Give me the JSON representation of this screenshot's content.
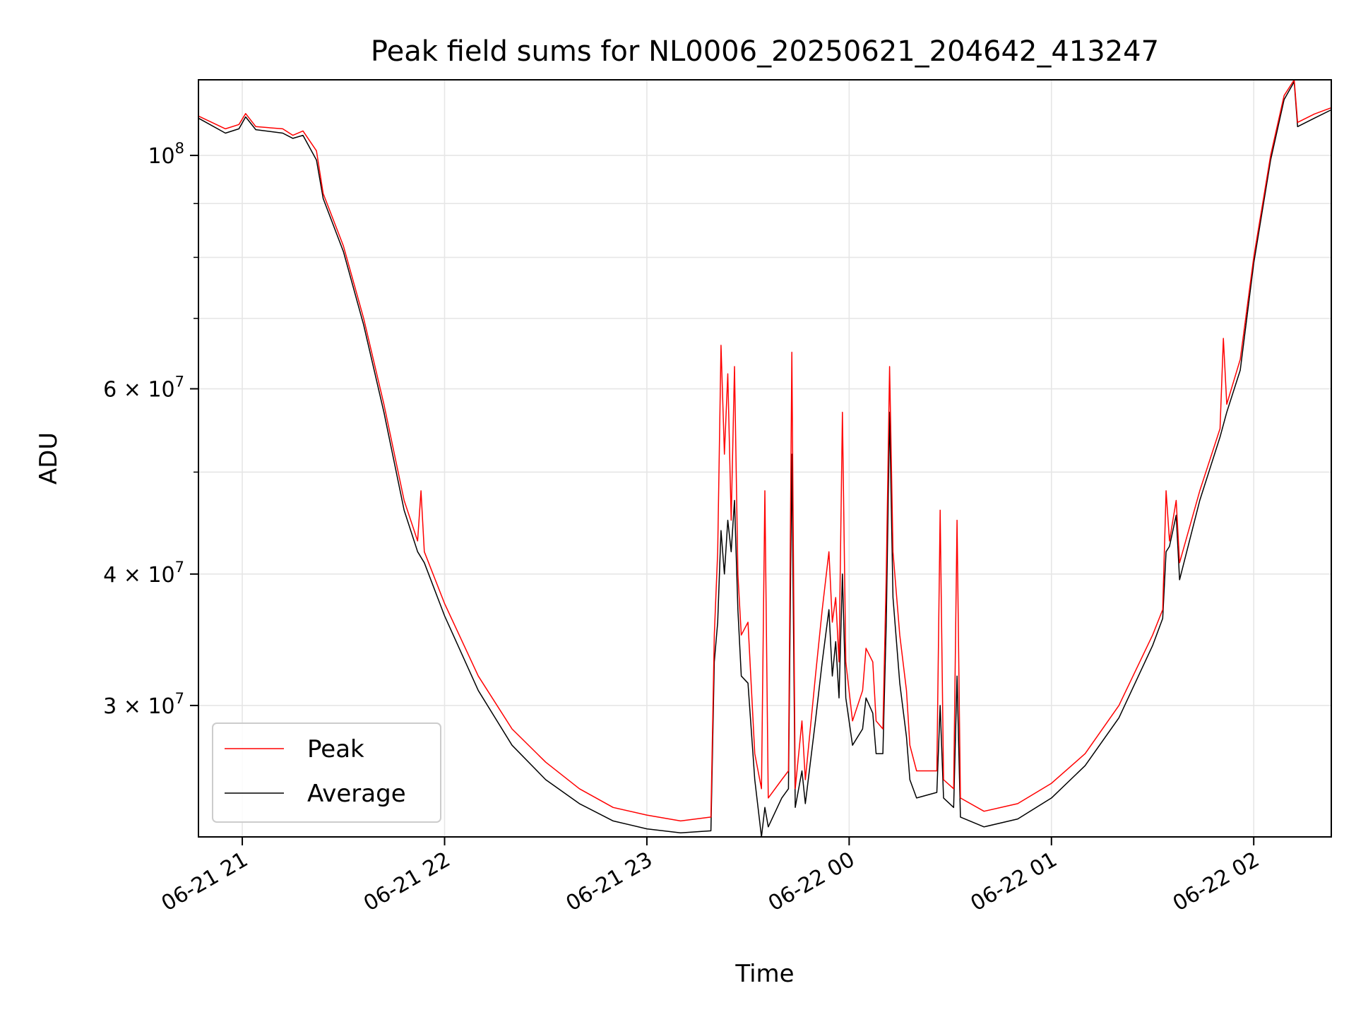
{
  "chart_data": {
    "type": "line",
    "title": "Peak field sums for NL0006_20250621_204642_413247",
    "xlabel": "Time",
    "ylabel": "ADU",
    "x_tick_labels": [
      "06-21 21",
      "06-21 22",
      "06-21 23",
      "06-22 00",
      "06-22 01",
      "06-22 02"
    ],
    "x_ticks": [
      "2025-06-21 21:00",
      "2025-06-21 22:00",
      "2025-06-21 23:00",
      "2025-06-22 00:00",
      "2025-06-22 01:00",
      "2025-06-22 02:00"
    ],
    "xlim": [
      "2025-06-21 20:47",
      "2025-06-22 02:23"
    ],
    "yscale": "log",
    "ylim": [
      22500000,
      118000000
    ],
    "y_major_ticks": [
      {
        "value": 100000000,
        "mantissa": "",
        "base": "10",
        "exp": "8"
      },
      {
        "value": 60000000,
        "mantissa": "6",
        "base": "10",
        "exp": "7"
      },
      {
        "value": 40000000,
        "mantissa": "4",
        "base": "10",
        "exp": "7"
      },
      {
        "value": 30000000,
        "mantissa": "3",
        "base": "10",
        "exp": "7"
      }
    ],
    "y_minor_ticks": [
      50000000,
      70000000,
      80000000,
      90000000
    ],
    "grid": true,
    "legend_position": "lower-left",
    "series": [
      {
        "name": "Peak",
        "color": "#ff0000",
        "points": [
          [
            "2025-06-21 20:47",
            109000000
          ],
          [
            "2025-06-21 20:55",
            106000000
          ],
          [
            "2025-06-21 20:59",
            107000000
          ],
          [
            "2025-06-21 21:01",
            109600000
          ],
          [
            "2025-06-21 21:04",
            106500000
          ],
          [
            "2025-06-21 21:12",
            106000000
          ],
          [
            "2025-06-21 21:15",
            104500000
          ],
          [
            "2025-06-21 21:18",
            105500000
          ],
          [
            "2025-06-21 21:22",
            101000000
          ],
          [
            "2025-06-21 21:24",
            92000000
          ],
          [
            "2025-06-21 21:30",
            82000000
          ],
          [
            "2025-06-21 21:36",
            70000000
          ],
          [
            "2025-06-21 21:42",
            58000000
          ],
          [
            "2025-06-21 21:48",
            47000000
          ],
          [
            "2025-06-21 21:52",
            43000000
          ],
          [
            "2025-06-21 21:53",
            48000000
          ],
          [
            "2025-06-21 21:54",
            42000000
          ],
          [
            "2025-06-21 22:00",
            37500000
          ],
          [
            "2025-06-21 22:10",
            32000000
          ],
          [
            "2025-06-21 22:20",
            28500000
          ],
          [
            "2025-06-21 22:30",
            26500000
          ],
          [
            "2025-06-21 22:40",
            25000000
          ],
          [
            "2025-06-21 22:50",
            24000000
          ],
          [
            "2025-06-21 23:00",
            23600000
          ],
          [
            "2025-06-21 23:10",
            23300000
          ],
          [
            "2025-06-21 23:19",
            23500000
          ],
          [
            "2025-06-21 23:20",
            35000000
          ],
          [
            "2025-06-21 23:21",
            42000000
          ],
          [
            "2025-06-21 23:22",
            66000000
          ],
          [
            "2025-06-21 23:23",
            52000000
          ],
          [
            "2025-06-21 23:24",
            62000000
          ],
          [
            "2025-06-21 23:25",
            45000000
          ],
          [
            "2025-06-21 23:26",
            63000000
          ],
          [
            "2025-06-21 23:27",
            40000000
          ],
          [
            "2025-06-21 23:28",
            35000000
          ],
          [
            "2025-06-21 23:30",
            36000000
          ],
          [
            "2025-06-21 23:32",
            27000000
          ],
          [
            "2025-06-21 23:34",
            25000000
          ],
          [
            "2025-06-21 23:35",
            48000000
          ],
          [
            "2025-06-21 23:36",
            24500000
          ],
          [
            "2025-06-21 23:40",
            25500000
          ],
          [
            "2025-06-21 23:42",
            26000000
          ],
          [
            "2025-06-21 23:43",
            65000000
          ],
          [
            "2025-06-21 23:44",
            25000000
          ],
          [
            "2025-06-21 23:46",
            29000000
          ],
          [
            "2025-06-21 23:47",
            25500000
          ],
          [
            "2025-06-21 23:50",
            32000000
          ],
          [
            "2025-06-21 23:52",
            37000000
          ],
          [
            "2025-06-21 23:54",
            42000000
          ],
          [
            "2025-06-21 23:55",
            36000000
          ],
          [
            "2025-06-21 23:56",
            38000000
          ],
          [
            "2025-06-21 23:57",
            33000000
          ],
          [
            "2025-06-21 23:58",
            57000000
          ],
          [
            "2025-06-21 23:59",
            33000000
          ],
          [
            "2025-06-22 00:01",
            29000000
          ],
          [
            "2025-06-22 00:04",
            31000000
          ],
          [
            "2025-06-22 00:05",
            34000000
          ],
          [
            "2025-06-22 00:07",
            33000000
          ],
          [
            "2025-06-22 00:08",
            29000000
          ],
          [
            "2025-06-22 00:10",
            28500000
          ],
          [
            "2025-06-22 00:11",
            40000000
          ],
          [
            "2025-06-22 00:12",
            63000000
          ],
          [
            "2025-06-22 00:13",
            42000000
          ],
          [
            "2025-06-22 00:15",
            35000000
          ],
          [
            "2025-06-22 00:17",
            31000000
          ],
          [
            "2025-06-22 00:18",
            27500000
          ],
          [
            "2025-06-22 00:20",
            26000000
          ],
          [
            "2025-06-22 00:26",
            26000000
          ],
          [
            "2025-06-22 00:27",
            46000000
          ],
          [
            "2025-06-22 00:28",
            25500000
          ],
          [
            "2025-06-22 00:31",
            25000000
          ],
          [
            "2025-06-22 00:32",
            45000000
          ],
          [
            "2025-06-22 00:33",
            24500000
          ],
          [
            "2025-06-22 00:40",
            23800000
          ],
          [
            "2025-06-22 00:50",
            24200000
          ],
          [
            "2025-06-22 01:00",
            25300000
          ],
          [
            "2025-06-22 01:10",
            27000000
          ],
          [
            "2025-06-22 01:20",
            30000000
          ],
          [
            "2025-06-22 01:30",
            35000000
          ],
          [
            "2025-06-22 01:33",
            37000000
          ],
          [
            "2025-06-22 01:34",
            48000000
          ],
          [
            "2025-06-22 01:35",
            43000000
          ],
          [
            "2025-06-22 01:37",
            47000000
          ],
          [
            "2025-06-22 01:38",
            41000000
          ],
          [
            "2025-06-22 01:44",
            48000000
          ],
          [
            "2025-06-22 01:50",
            55000000
          ],
          [
            "2025-06-22 01:51",
            67000000
          ],
          [
            "2025-06-22 01:52",
            58000000
          ],
          [
            "2025-06-22 01:56",
            64000000
          ],
          [
            "2025-06-22 02:00",
            80000000
          ],
          [
            "2025-06-22 02:05",
            100000000
          ],
          [
            "2025-06-22 02:09",
            114000000
          ],
          [
            "2025-06-22 02:12",
            118000000
          ],
          [
            "2025-06-22 02:13",
            107500000
          ],
          [
            "2025-06-22 02:18",
            109500000
          ],
          [
            "2025-06-22 02:23",
            111000000
          ]
        ]
      },
      {
        "name": "Average",
        "color": "#000000",
        "points": [
          [
            "2025-06-21 20:47",
            108500000
          ],
          [
            "2025-06-21 20:55",
            105000000
          ],
          [
            "2025-06-21 20:59",
            106000000
          ],
          [
            "2025-06-21 21:01",
            108800000
          ],
          [
            "2025-06-21 21:04",
            105800000
          ],
          [
            "2025-06-21 21:12",
            105000000
          ],
          [
            "2025-06-21 21:15",
            103800000
          ],
          [
            "2025-06-21 21:18",
            104500000
          ],
          [
            "2025-06-21 21:22",
            99000000
          ],
          [
            "2025-06-21 21:24",
            91000000
          ],
          [
            "2025-06-21 21:30",
            81000000
          ],
          [
            "2025-06-21 21:36",
            69000000
          ],
          [
            "2025-06-21 21:42",
            57000000
          ],
          [
            "2025-06-21 21:48",
            46000000
          ],
          [
            "2025-06-21 21:52",
            42000000
          ],
          [
            "2025-06-21 21:54",
            41000000
          ],
          [
            "2025-06-21 22:00",
            36500000
          ],
          [
            "2025-06-21 22:10",
            31000000
          ],
          [
            "2025-06-21 22:20",
            27500000
          ],
          [
            "2025-06-21 22:30",
            25500000
          ],
          [
            "2025-06-21 22:40",
            24200000
          ],
          [
            "2025-06-21 22:50",
            23300000
          ],
          [
            "2025-06-21 23:00",
            22900000
          ],
          [
            "2025-06-21 23:10",
            22700000
          ],
          [
            "2025-06-21 23:19",
            22800000
          ],
          [
            "2025-06-21 23:20",
            33000000
          ],
          [
            "2025-06-21 23:21",
            36000000
          ],
          [
            "2025-06-21 23:22",
            44000000
          ],
          [
            "2025-06-21 23:23",
            40000000
          ],
          [
            "2025-06-21 23:24",
            45000000
          ],
          [
            "2025-06-21 23:25",
            42000000
          ],
          [
            "2025-06-21 23:26",
            47000000
          ],
          [
            "2025-06-21 23:27",
            37000000
          ],
          [
            "2025-06-21 23:28",
            32000000
          ],
          [
            "2025-06-21 23:30",
            31500000
          ],
          [
            "2025-06-21 23:32",
            25500000
          ],
          [
            "2025-06-21 23:34",
            22500000
          ],
          [
            "2025-06-21 23:35",
            24000000
          ],
          [
            "2025-06-21 23:36",
            23000000
          ],
          [
            "2025-06-21 23:40",
            24500000
          ],
          [
            "2025-06-21 23:42",
            25000000
          ],
          [
            "2025-06-21 23:43",
            52000000
          ],
          [
            "2025-06-21 23:44",
            24000000
          ],
          [
            "2025-06-21 23:46",
            26000000
          ],
          [
            "2025-06-21 23:47",
            24200000
          ],
          [
            "2025-06-21 23:50",
            29000000
          ],
          [
            "2025-06-21 23:52",
            33000000
          ],
          [
            "2025-06-21 23:54",
            37000000
          ],
          [
            "2025-06-21 23:55",
            32000000
          ],
          [
            "2025-06-21 23:56",
            34500000
          ],
          [
            "2025-06-21 23:57",
            30500000
          ],
          [
            "2025-06-21 23:58",
            40000000
          ],
          [
            "2025-06-21 23:59",
            30500000
          ],
          [
            "2025-06-22 00:01",
            27500000
          ],
          [
            "2025-06-22 00:04",
            28500000
          ],
          [
            "2025-06-22 00:05",
            30500000
          ],
          [
            "2025-06-22 00:07",
            29500000
          ],
          [
            "2025-06-22 00:08",
            27000000
          ],
          [
            "2025-06-22 00:10",
            27000000
          ],
          [
            "2025-06-22 00:11",
            36000000
          ],
          [
            "2025-06-22 00:12",
            57000000
          ],
          [
            "2025-06-22 00:13",
            38000000
          ],
          [
            "2025-06-22 00:15",
            31500000
          ],
          [
            "2025-06-22 00:17",
            28000000
          ],
          [
            "2025-06-22 00:18",
            25500000
          ],
          [
            "2025-06-22 00:20",
            24500000
          ],
          [
            "2025-06-22 00:26",
            24800000
          ],
          [
            "2025-06-22 00:27",
            30000000
          ],
          [
            "2025-06-22 00:28",
            24500000
          ],
          [
            "2025-06-22 00:31",
            24000000
          ],
          [
            "2025-06-22 00:32",
            32000000
          ],
          [
            "2025-06-22 00:33",
            23500000
          ],
          [
            "2025-06-22 00:40",
            23000000
          ],
          [
            "2025-06-22 00:50",
            23400000
          ],
          [
            "2025-06-22 01:00",
            24500000
          ],
          [
            "2025-06-22 01:10",
            26300000
          ],
          [
            "2025-06-22 01:20",
            29200000
          ],
          [
            "2025-06-22 01:30",
            34200000
          ],
          [
            "2025-06-22 01:33",
            36300000
          ],
          [
            "2025-06-22 01:34",
            42000000
          ],
          [
            "2025-06-22 01:35",
            42500000
          ],
          [
            "2025-06-22 01:37",
            45500000
          ],
          [
            "2025-06-22 01:38",
            39500000
          ],
          [
            "2025-06-22 01:44",
            47000000
          ],
          [
            "2025-06-22 01:50",
            54000000
          ],
          [
            "2025-06-22 01:52",
            57000000
          ],
          [
            "2025-06-22 01:56",
            62500000
          ],
          [
            "2025-06-22 02:00",
            79000000
          ],
          [
            "2025-06-22 02:05",
            99000000
          ],
          [
            "2025-06-22 02:09",
            113000000
          ],
          [
            "2025-06-22 02:12",
            117500000
          ],
          [
            "2025-06-22 02:13",
            106500000
          ],
          [
            "2025-06-22 02:18",
            108500000
          ],
          [
            "2025-06-22 02:23",
            110500000
          ]
        ]
      }
    ]
  }
}
